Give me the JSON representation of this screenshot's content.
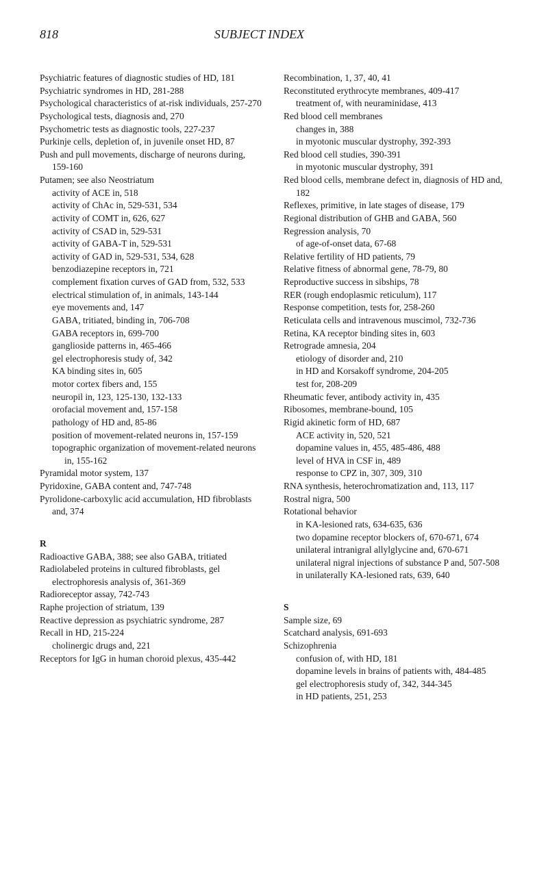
{
  "header": {
    "page_number": "818",
    "title": "SUBJECT INDEX"
  },
  "left_column": [
    {
      "t": "entry",
      "x": "Psychiatric features of diagnostic studies of HD, 181"
    },
    {
      "t": "entry",
      "x": "Psychiatric syndromes in HD, 281-288"
    },
    {
      "t": "entry",
      "x": "Psychological characteristics of at-risk individuals, 257-270"
    },
    {
      "t": "entry",
      "x": "Psychological tests, diagnosis and, 270"
    },
    {
      "t": "entry",
      "x": "Psychometric tests as diagnostic tools, 227-237"
    },
    {
      "t": "entry",
      "x": "Purkinje cells, depletion of, in juvenile onset HD, 87"
    },
    {
      "t": "entry",
      "x": "Push and pull movements, discharge of neurons during, 159-160"
    },
    {
      "t": "entry",
      "x": "Putamen; see also Neostriatum"
    },
    {
      "t": "sub",
      "x": "activity of ACE in, 518"
    },
    {
      "t": "sub",
      "x": "activity of ChAc in, 529-531, 534"
    },
    {
      "t": "sub",
      "x": "activity of COMT in, 626, 627"
    },
    {
      "t": "sub",
      "x": "activity of CSAD in, 529-531"
    },
    {
      "t": "sub",
      "x": "activity of GABA-T in, 529-531"
    },
    {
      "t": "sub",
      "x": "activity of GAD in, 529-531, 534, 628"
    },
    {
      "t": "sub",
      "x": "benzodiazepine receptors in, 721"
    },
    {
      "t": "sub",
      "x": "complement fixation curves of GAD from, 532, 533"
    },
    {
      "t": "sub",
      "x": "electrical stimulation of, in animals, 143-144"
    },
    {
      "t": "sub",
      "x": "eye movements and, 147"
    },
    {
      "t": "sub",
      "x": "GABA, tritiated, binding in, 706-708"
    },
    {
      "t": "sub",
      "x": "GABA receptors in, 699-700"
    },
    {
      "t": "sub",
      "x": "ganglioside patterns in, 465-466"
    },
    {
      "t": "sub",
      "x": "gel electrophoresis study of, 342"
    },
    {
      "t": "sub",
      "x": "KA binding sites in, 605"
    },
    {
      "t": "sub",
      "x": "motor cortex fibers and, 155"
    },
    {
      "t": "sub",
      "x": "neuropil in, 123, 125-130, 132-133"
    },
    {
      "t": "sub",
      "x": "orofacial movement and, 157-158"
    },
    {
      "t": "sub",
      "x": "pathology of HD and, 85-86"
    },
    {
      "t": "sub",
      "x": "position of movement-related neurons in, 157-159"
    },
    {
      "t": "sub",
      "x": "topographic organization of movement-related neurons in, 155-162"
    },
    {
      "t": "entry",
      "x": "Pyramidal motor system, 137"
    },
    {
      "t": "entry",
      "x": "Pyridoxine, GABA content and, 747-748"
    },
    {
      "t": "entry",
      "x": "Pyrolidone-carboxylic acid accumulation, HD fibroblasts and, 374"
    },
    {
      "t": "gap"
    },
    {
      "t": "letter",
      "x": "R"
    },
    {
      "t": "entry",
      "x": "Radioactive GABA, 388; see also GABA, tritiated"
    },
    {
      "t": "entry",
      "x": "Radiolabeled proteins in cultured fibroblasts, gel electrophoresis analysis of, 361-369"
    },
    {
      "t": "entry",
      "x": "Radioreceptor assay, 742-743"
    },
    {
      "t": "entry",
      "x": "Raphe projection of striatum, 139"
    },
    {
      "t": "entry",
      "x": "Reactive depression as psychiatric syndrome, 287"
    },
    {
      "t": "entry",
      "x": "Recall in HD, 215-224"
    },
    {
      "t": "sub",
      "x": "cholinergic drugs and, 221"
    },
    {
      "t": "entry",
      "x": "Receptors for IgG in human choroid plexus, 435-442"
    }
  ],
  "right_column": [
    {
      "t": "entry",
      "x": "Recombination, 1, 37, 40, 41"
    },
    {
      "t": "entry",
      "x": "Reconstituted erythrocyte membranes, 409-417"
    },
    {
      "t": "sub",
      "x": "treatment of, with neuraminidase, 413"
    },
    {
      "t": "entry",
      "x": "Red blood cell membranes"
    },
    {
      "t": "sub",
      "x": "changes in, 388"
    },
    {
      "t": "sub",
      "x": "in myotonic muscular dystrophy, 392-393"
    },
    {
      "t": "entry",
      "x": "Red blood cell studies, 390-391"
    },
    {
      "t": "sub",
      "x": "in myotonic muscular dystrophy, 391"
    },
    {
      "t": "entry",
      "x": "Red blood cells, membrane defect in, diagnosis of HD and, 182"
    },
    {
      "t": "entry",
      "x": "Reflexes, primitive, in late stages of disease, 179"
    },
    {
      "t": "entry",
      "x": "Regional distribution of GHB and GABA, 560"
    },
    {
      "t": "entry",
      "x": "Regression analysis, 70"
    },
    {
      "t": "sub",
      "x": "of age-of-onset data, 67-68"
    },
    {
      "t": "entry",
      "x": "Relative fertility of HD patients, 79"
    },
    {
      "t": "entry",
      "x": "Relative fitness of abnormal gene, 78-79, 80"
    },
    {
      "t": "entry",
      "x": "Reproductive success in sibships, 78"
    },
    {
      "t": "entry",
      "x": "RER (rough endoplasmic reticulum), 117"
    },
    {
      "t": "entry",
      "x": "Response competition, tests for, 258-260"
    },
    {
      "t": "entry",
      "x": "Reticulata cells and intravenous muscimol, 732-736"
    },
    {
      "t": "entry",
      "x": "Retina, KA receptor binding sites in, 603"
    },
    {
      "t": "entry",
      "x": "Retrograde amnesia, 204"
    },
    {
      "t": "sub",
      "x": "etiology of disorder and, 210"
    },
    {
      "t": "sub",
      "x": "in HD and Korsakoff syndrome, 204-205"
    },
    {
      "t": "sub",
      "x": "test for, 208-209"
    },
    {
      "t": "entry",
      "x": "Rheumatic fever, antibody activity in, 435"
    },
    {
      "t": "entry",
      "x": "Ribosomes, membrane-bound, 105"
    },
    {
      "t": "entry",
      "x": "Rigid akinetic form of HD, 687"
    },
    {
      "t": "sub",
      "x": "ACE activity in, 520, 521"
    },
    {
      "t": "sub",
      "x": "dopamine values in, 455, 485-486, 488"
    },
    {
      "t": "sub",
      "x": "level of HVA in CSF in, 489"
    },
    {
      "t": "sub",
      "x": "response to CPZ in, 307, 309, 310"
    },
    {
      "t": "entry",
      "x": "RNA synthesis, heterochromatization and, 113, 117"
    },
    {
      "t": "entry",
      "x": "Rostral nigra, 500"
    },
    {
      "t": "entry",
      "x": "Rotational behavior"
    },
    {
      "t": "sub",
      "x": "in KA-lesioned rats, 634-635, 636"
    },
    {
      "t": "sub",
      "x": "two dopamine receptor blockers of, 670-671, 674"
    },
    {
      "t": "sub",
      "x": "unilateral intranigral allylglycine and, 670-671"
    },
    {
      "t": "sub",
      "x": "unilateral nigral injections of substance P and, 507-508"
    },
    {
      "t": "sub",
      "x": "in unilaterally KA-lesioned rats, 639, 640"
    },
    {
      "t": "gap"
    },
    {
      "t": "letter",
      "x": "S"
    },
    {
      "t": "entry",
      "x": "Sample size, 69"
    },
    {
      "t": "entry",
      "x": "Scatchard analysis, 691-693"
    },
    {
      "t": "entry",
      "x": "Schizophrenia"
    },
    {
      "t": "sub",
      "x": "confusion of, with HD, 181"
    },
    {
      "t": "sub",
      "x": "dopamine levels in brains of patients with, 484-485"
    },
    {
      "t": "sub",
      "x": "gel electrophoresis study of, 342, 344-345"
    },
    {
      "t": "sub",
      "x": "in HD patients, 251, 253"
    }
  ]
}
